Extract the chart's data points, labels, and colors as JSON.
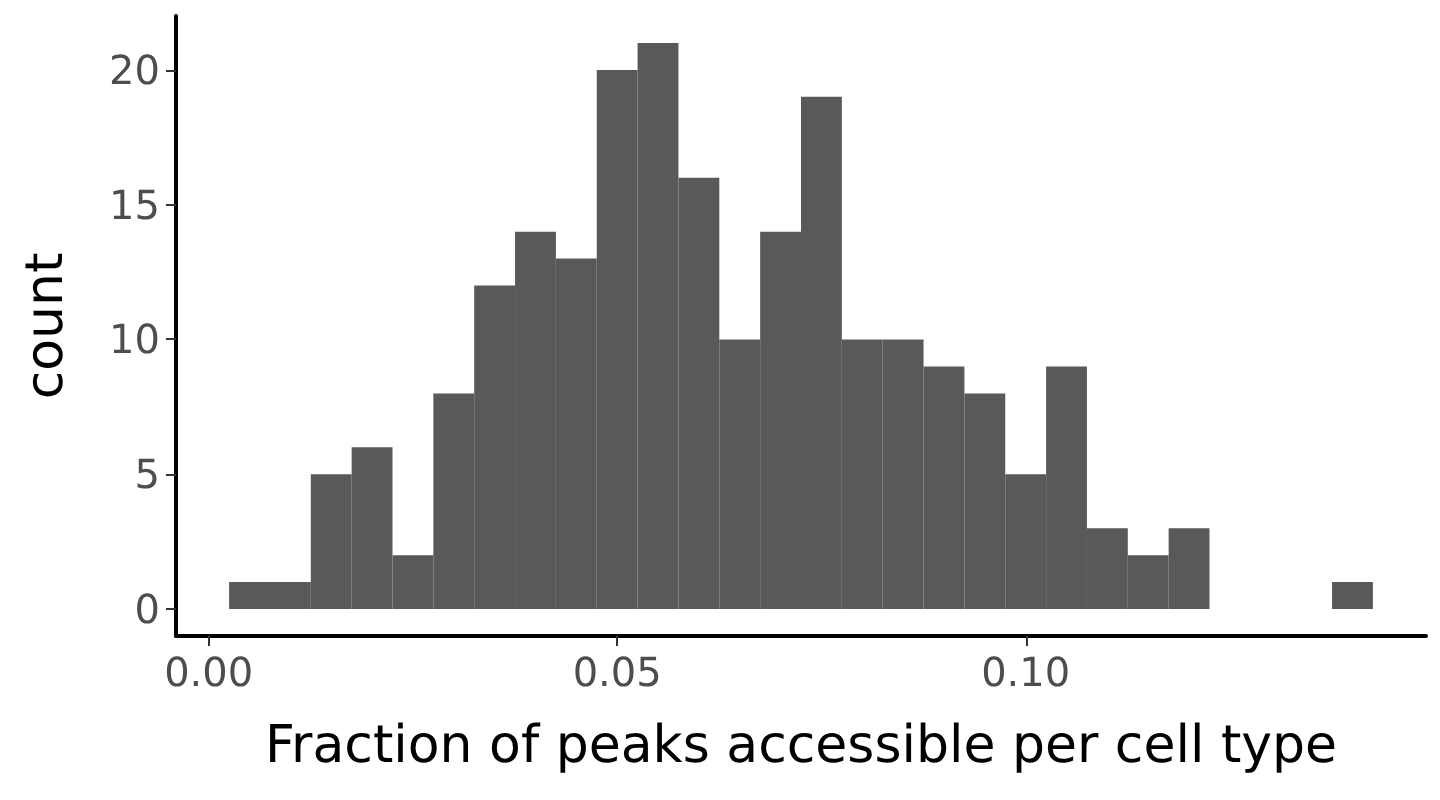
{
  "chart_data": {
    "type": "histogram",
    "xlabel": "Fraction of peaks accessible per cell type",
    "ylabel": "count",
    "color": "#595959",
    "bins": [
      0.0025,
      0.0075,
      0.0125,
      0.0175,
      0.0225,
      0.0275,
      0.0325,
      0.0375,
      0.0425,
      0.0475,
      0.0525,
      0.0575,
      0.0625,
      0.0675,
      0.0725,
      0.0775,
      0.0825,
      0.0875,
      0.0925,
      0.0975,
      0.1025,
      0.1075,
      0.1125,
      0.1175,
      0.1225,
      0.1275,
      0.1325,
      0.1375,
      0.1425
    ],
    "values": [
      1,
      1,
      5,
      6,
      2,
      8,
      12,
      14,
      13,
      20,
      21,
      16,
      10,
      14,
      19,
      10,
      10,
      9,
      8,
      5,
      9,
      3,
      2,
      3,
      0,
      0,
      0,
      1
    ],
    "xlim": [
      -0.004,
      0.149
    ],
    "xticks": [
      {
        "value": 0,
        "label": "0.00"
      },
      {
        "value": 0.05,
        "label": "0.05"
      },
      {
        "value": 0.1,
        "label": "0.10"
      }
    ],
    "ylim": [
      -1,
      22
    ],
    "yticks": [
      0,
      5,
      10,
      15,
      20
    ],
    "grid": false
  }
}
